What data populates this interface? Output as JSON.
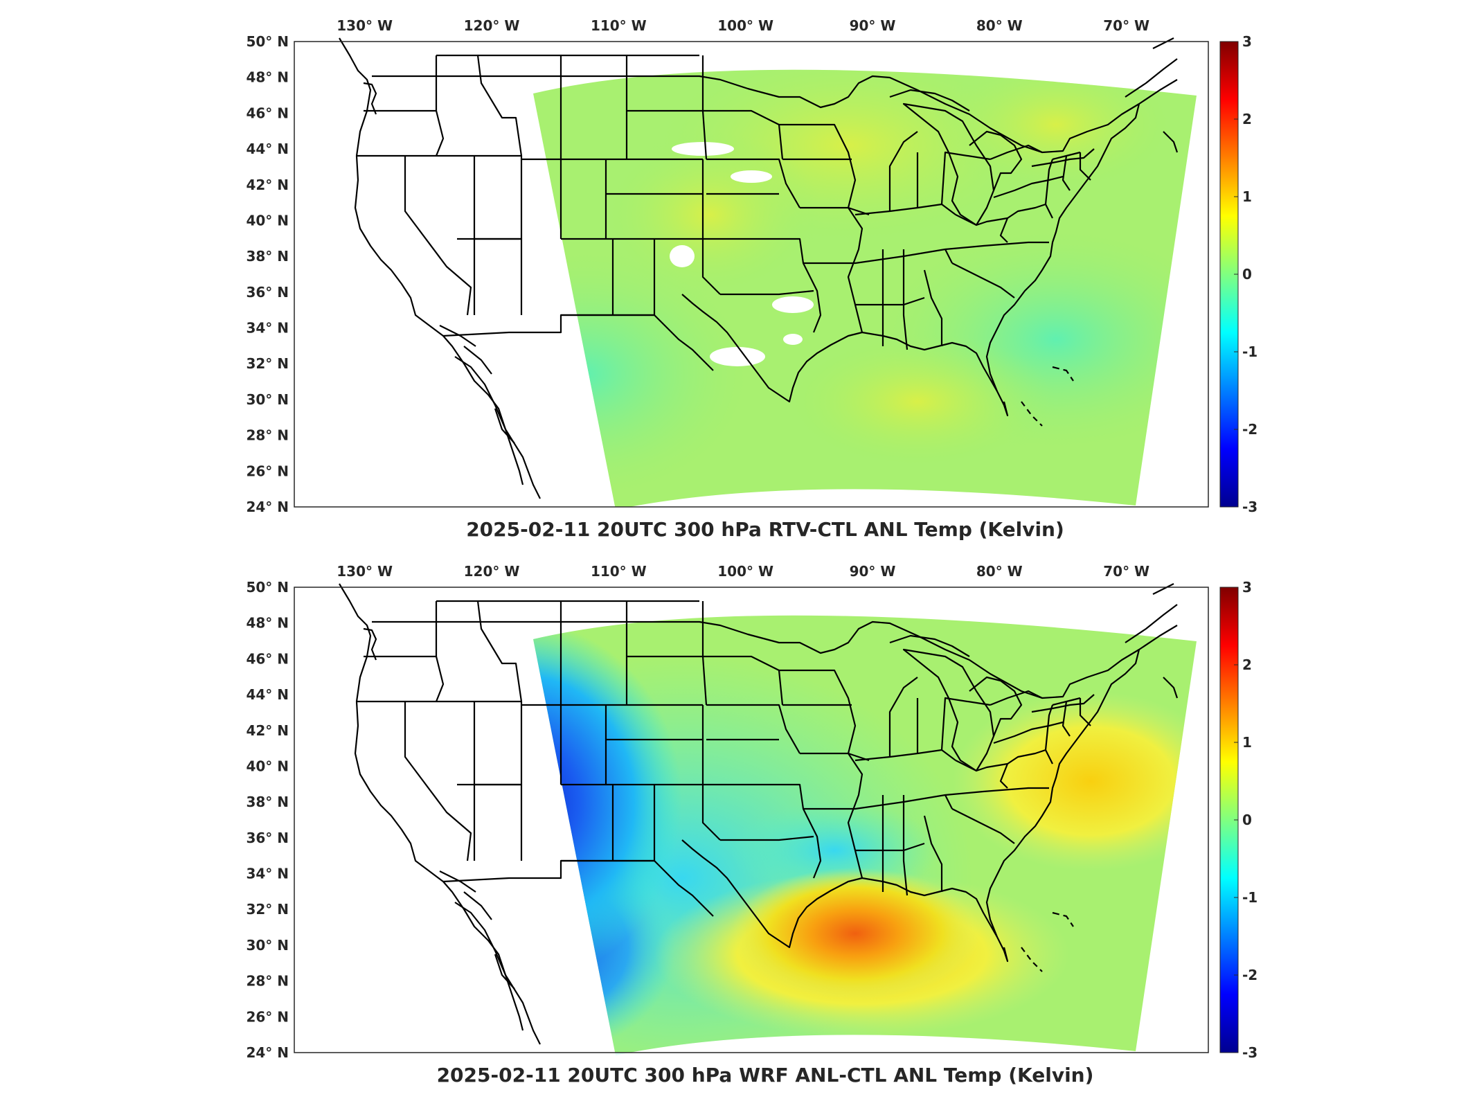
{
  "maps": [
    {
      "title": "2025-02-11 20UTC 300 hPa RTV-CTL ANL Temp (Kelvin)",
      "field": "rtv"
    },
    {
      "title": "2025-02-11 20UTC 300 hPa WRF ANL-CTL ANL Temp (Kelvin)",
      "field": "wrf"
    }
  ],
  "lon_ticks": [
    {
      "value": 130,
      "label": "130",
      "hemi": "W"
    },
    {
      "value": 120,
      "label": "120",
      "hemi": "W"
    },
    {
      "value": 110,
      "label": "110",
      "hemi": "W"
    },
    {
      "value": 100,
      "label": "100",
      "hemi": "W"
    },
    {
      "value": 90,
      "label": "90",
      "hemi": "W"
    },
    {
      "value": 80,
      "label": "80",
      "hemi": "W"
    },
    {
      "value": 70,
      "label": "70",
      "hemi": "W"
    }
  ],
  "lat_ticks": [
    {
      "value": 50,
      "label": "50",
      "hemi": "N"
    },
    {
      "value": 48,
      "label": "48",
      "hemi": "N"
    },
    {
      "value": 46,
      "label": "46",
      "hemi": "N"
    },
    {
      "value": 44,
      "label": "44",
      "hemi": "N"
    },
    {
      "value": 42,
      "label": "42",
      "hemi": "N"
    },
    {
      "value": 40,
      "label": "40",
      "hemi": "N"
    },
    {
      "value": 38,
      "label": "38",
      "hemi": "N"
    },
    {
      "value": 36,
      "label": "36",
      "hemi": "N"
    },
    {
      "value": 34,
      "label": "34",
      "hemi": "N"
    },
    {
      "value": 32,
      "label": "32",
      "hemi": "N"
    },
    {
      "value": 30,
      "label": "30",
      "hemi": "N"
    },
    {
      "value": 28,
      "label": "28",
      "hemi": "N"
    },
    {
      "value": 26,
      "label": "26",
      "hemi": "N"
    },
    {
      "value": 24,
      "label": "24",
      "hemi": "N"
    }
  ],
  "colorbar": {
    "min": -3,
    "max": 3,
    "ticks": [
      "3",
      "2",
      "1",
      "0",
      "-1",
      "-2",
      "-3"
    ],
    "colors": [
      "#00008f",
      "#0000ff",
      "#0080ff",
      "#00ffff",
      "#80ff80",
      "#ffff00",
      "#ff8000",
      "#ff0000",
      "#800000"
    ]
  }
}
